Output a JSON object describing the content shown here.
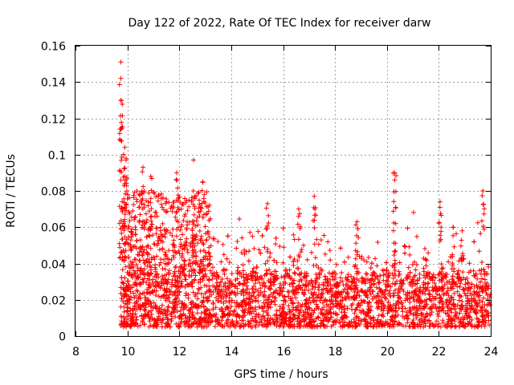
{
  "chart_data": {
    "type": "scatter",
    "title": "Day 122 of 2022, Rate Of TEC Index for receiver darw",
    "xlabel": "GPS time / hours",
    "ylabel": "ROTI / TECUs",
    "xlim": [
      8,
      24
    ],
    "ylim": [
      0,
      0.16
    ],
    "xticks": [
      "8",
      "10",
      "12",
      "14",
      "16",
      "18",
      "20",
      "22",
      "24"
    ],
    "yticks": [
      "0",
      "0.02",
      "0.04",
      "0.06",
      "0.08",
      "0.1",
      "0.12",
      "0.14",
      "0.16"
    ],
    "grid": true,
    "marker": "+",
    "color": "#ff0000",
    "x_start": 9.75,
    "x_end": 24,
    "baseline_range": [
      0.005,
      0.035
    ],
    "notable_points": [
      {
        "x": 9.75,
        "y": 0.151
      },
      {
        "x": 9.75,
        "y": 0.142
      },
      {
        "x": 9.75,
        "y": 0.13
      },
      {
        "x": 9.75,
        "y": 0.114
      },
      {
        "x": 9.9,
        "y": 0.104
      },
      {
        "x": 9.95,
        "y": 0.097
      },
      {
        "x": 9.9,
        "y": 0.088
      },
      {
        "x": 10.6,
        "y": 0.093
      },
      {
        "x": 10.9,
        "y": 0.088
      },
      {
        "x": 11.9,
        "y": 0.09
      },
      {
        "x": 12.55,
        "y": 0.097
      },
      {
        "x": 12.9,
        "y": 0.085
      },
      {
        "x": 15.4,
        "y": 0.073
      },
      {
        "x": 16.6,
        "y": 0.07
      },
      {
        "x": 17.2,
        "y": 0.077
      },
      {
        "x": 18.85,
        "y": 0.063
      },
      {
        "x": 20.3,
        "y": 0.09
      },
      {
        "x": 20.3,
        "y": 0.086
      },
      {
        "x": 22.05,
        "y": 0.074
      },
      {
        "x": 22.55,
        "y": 0.06
      },
      {
        "x": 22.9,
        "y": 0.058
      },
      {
        "x": 23.7,
        "y": 0.08
      }
    ]
  }
}
